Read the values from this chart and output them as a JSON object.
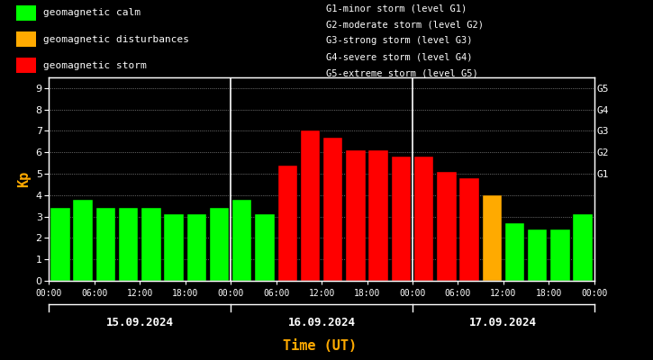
{
  "background_color": "#000000",
  "plot_bg_color": "#000000",
  "bar_values": [
    3.4,
    3.8,
    3.4,
    3.4,
    3.4,
    3.1,
    3.1,
    3.4,
    3.8,
    3.1,
    5.4,
    7.0,
    6.7,
    6.1,
    6.1,
    5.8,
    5.8,
    5.1,
    4.8,
    4.0,
    2.7,
    2.4,
    2.4,
    3.1
  ],
  "bar_colors": [
    "#00ff00",
    "#00ff00",
    "#00ff00",
    "#00ff00",
    "#00ff00",
    "#00ff00",
    "#00ff00",
    "#00ff00",
    "#00ff00",
    "#00ff00",
    "#ff0000",
    "#ff0000",
    "#ff0000",
    "#ff0000",
    "#ff0000",
    "#ff0000",
    "#ff0000",
    "#ff0000",
    "#ff0000",
    "#ffaa00",
    "#00ff00",
    "#00ff00",
    "#00ff00",
    "#00ff00"
  ],
  "tick_labels": [
    "00:00",
    "06:00",
    "12:00",
    "18:00",
    "00:00",
    "06:00",
    "12:00",
    "18:00",
    "00:00",
    "06:00",
    "12:00",
    "18:00",
    "00:00"
  ],
  "day_labels": [
    "15.09.2024",
    "16.09.2024",
    "17.09.2024"
  ],
  "day_dividers": [
    7.5,
    15.5
  ],
  "xlabel": "Time (UT)",
  "ylabel": "Kp",
  "ylim": [
    0,
    9.5
  ],
  "yticks": [
    0,
    1,
    2,
    3,
    4,
    5,
    6,
    7,
    8,
    9
  ],
  "g_labels": [
    "G1",
    "G2",
    "G3",
    "G4",
    "G5"
  ],
  "g_positions": [
    5,
    6,
    7,
    8,
    9
  ],
  "legend_items": [
    {
      "label": "geomagnetic calm",
      "color": "#00ff00"
    },
    {
      "label": "geomagnetic disturbances",
      "color": "#ffaa00"
    },
    {
      "label": "geomagnetic storm",
      "color": "#ff0000"
    }
  ],
  "right_text": [
    "G1-minor storm (level G1)",
    "G2-moderate storm (level G2)",
    "G3-strong storm (level G3)",
    "G4-severe storm (level G4)",
    "G5-extreme storm (level G5)"
  ],
  "text_color": "#ffffff",
  "xlabel_color": "#ffaa00",
  "ylabel_color": "#ffaa00",
  "axis_color": "#ffffff",
  "tick_color": "#ffffff",
  "day_label_color": "#ffffff",
  "divider_color": "#ffffff"
}
